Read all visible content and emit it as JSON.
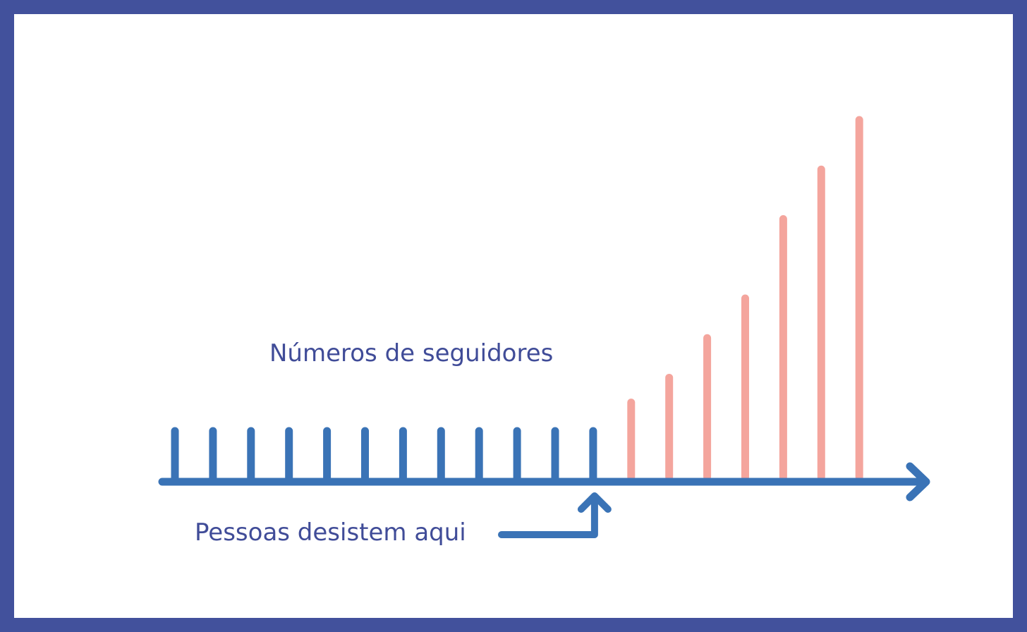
{
  "colors": {
    "frame": "#42519c",
    "axis": "#3a73b6",
    "flat_bars": "#3a73b6",
    "growth_bars": "#f4a59d",
    "text": "#404c98"
  },
  "chart_data": {
    "type": "bar",
    "title": "Números de seguidores",
    "xlabel": "",
    "ylabel": "",
    "grid": false,
    "values": [
      1,
      1,
      1,
      1,
      1,
      1,
      1,
      1,
      1,
      1,
      1,
      1,
      1.5,
      2,
      2.8,
      3.6,
      5.2,
      6.2,
      7.2
    ],
    "growth_start_index": 12,
    "ylim": [
      0,
      7.2
    ],
    "annotation": {
      "text": "Pessoas desistem aqui",
      "target_index": 11,
      "icon": "arrow-up-icon"
    }
  }
}
